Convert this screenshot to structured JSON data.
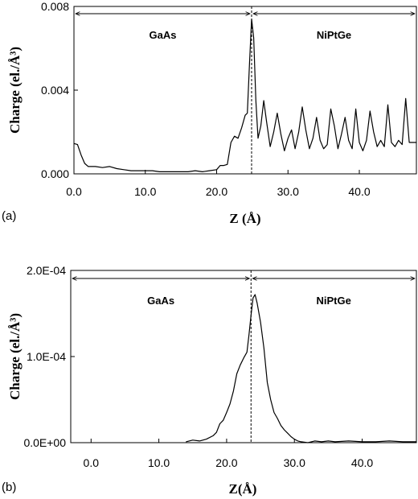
{
  "chart_data": [
    {
      "type": "line",
      "panel_label": "(a)",
      "xlabel": "Z (Å)",
      "ylabel": "Charge (el./Å³)",
      "xlim": [
        0,
        48
      ],
      "ylim": [
        0,
        0.008
      ],
      "xticks": [
        0,
        10,
        20,
        30,
        40
      ],
      "xtick_labels": [
        "0.0",
        "10.0",
        "20.0",
        "30.0",
        "40.0"
      ],
      "yticks": [
        0,
        0.004,
        0.008
      ],
      "ytick_labels": [
        "0.000",
        "0.004",
        "0.008"
      ],
      "interface_z": 24.9,
      "regions": [
        {
          "label": "GaAs",
          "from": 0,
          "to": 24.9
        },
        {
          "label": "NiPtGe",
          "from": 24.9,
          "to": 48
        }
      ],
      "series": [
        {
          "x": [
            0,
            0.5,
            1,
            1.5,
            2,
            3,
            4,
            5,
            6,
            7,
            8,
            9,
            10,
            11,
            12,
            13,
            14,
            15,
            16,
            17,
            18,
            19,
            20,
            20.5,
            21,
            21.5,
            22,
            22.5,
            23,
            23.5,
            24,
            24.3,
            24.6,
            24.9,
            25.2,
            25.5,
            25.8,
            26.2,
            26.6,
            27,
            27.5,
            28,
            28.5,
            29,
            29.5,
            30,
            30.5,
            31,
            31.5,
            32,
            32.5,
            33,
            33.5,
            34,
            34.5,
            35,
            35.5,
            36,
            36.5,
            37,
            37.5,
            38,
            38.5,
            39,
            39.5,
            40,
            40.5,
            41,
            41.5,
            42,
            42.5,
            43,
            43.5,
            44,
            44.5,
            45,
            45.5,
            46,
            46.5,
            47,
            47.5,
            48
          ],
          "y": [
            0.00145,
            0.0014,
            0.0009,
            0.0005,
            0.00035,
            0.00035,
            0.0003,
            0.00035,
            0.00025,
            0.0002,
            0.00015,
            0.00015,
            0.00015,
            0.00015,
            0.0001,
            0.0001,
            0.0001,
            0.0001,
            0.0001,
            0.00015,
            0.0001,
            0.00015,
            0.0002,
            0.0004,
            0.0004,
            0.00045,
            0.0015,
            0.0018,
            0.0017,
            0.0022,
            0.0028,
            0.0029,
            0.0052,
            0.0074,
            0.0065,
            0.0035,
            0.0017,
            0.0023,
            0.0035,
            0.0025,
            0.0013,
            0.002,
            0.0029,
            0.0019,
            0.0011,
            0.0017,
            0.0021,
            0.0012,
            0.002,
            0.0032,
            0.0021,
            0.0012,
            0.0017,
            0.0027,
            0.0016,
            0.0012,
            0.0014,
            0.0031,
            0.0023,
            0.0012,
            0.0019,
            0.0027,
            0.0016,
            0.0012,
            0.0031,
            0.0015,
            0.0011,
            0.0016,
            0.003,
            0.002,
            0.0013,
            0.0016,
            0.0013,
            0.0033,
            0.0015,
            0.0013,
            0.0016,
            0.0014,
            0.0036,
            0.0015,
            0.0015,
            0.0015
          ]
        }
      ]
    },
    {
      "type": "line",
      "panel_label": "(b)",
      "xlabel": "Z(Å)",
      "ylabel": "Charge (el./Å³)",
      "xlim": [
        -3,
        48
      ],
      "ylim": [
        0,
        0.0002
      ],
      "xticks": [
        0,
        10,
        20,
        30,
        40
      ],
      "xtick_labels": [
        "0.0",
        "10.0",
        "20.0",
        "30.0",
        "40.0"
      ],
      "yticks": [
        0,
        0.0001,
        0.0002
      ],
      "ytick_labels": [
        "0.0E+00",
        "1.0E-04",
        "2.0E-04"
      ],
      "interface_z": 23.6,
      "regions": [
        {
          "label": "GaAs",
          "from": -3,
          "to": 23.6
        },
        {
          "label": "NiPtGe",
          "from": 23.6,
          "to": 48
        }
      ],
      "series": [
        {
          "x": [
            14,
            15,
            16,
            17,
            18,
            18.5,
            19,
            19.5,
            20,
            20.5,
            21,
            21.5,
            22,
            22.5,
            23,
            23.3,
            23.6,
            23.9,
            24.2,
            24.5,
            25,
            25.5,
            26,
            26.5,
            27,
            27.5,
            28,
            28.5,
            29,
            29.5,
            30,
            30.5,
            31,
            32,
            33,
            34,
            35,
            36,
            38,
            40,
            42,
            44,
            46,
            48
          ],
          "y": [
            1e-06,
            3e-06,
            2e-06,
            4e-06,
            8e-06,
            1.2e-05,
            2.2e-05,
            2.6e-05,
            3.5e-05,
            4.5e-05,
            6e-05,
            8e-05,
            9e-05,
            9.8e-05,
            0.000105,
            0.000125,
            0.000148,
            0.000168,
            0.000172,
            0.000162,
            0.00014,
            0.00011,
            7e-05,
            5e-05,
            3.5e-05,
            2.8e-05,
            2e-05,
            1.5e-05,
            1.1e-05,
            7e-06,
            4e-06,
            2e-06,
            1e-06,
            0,
            2e-06,
            1e-06,
            2e-06,
            1e-06,
            2e-06,
            1e-06,
            1e-06,
            2e-06,
            1e-06,
            1e-06
          ]
        }
      ]
    }
  ]
}
